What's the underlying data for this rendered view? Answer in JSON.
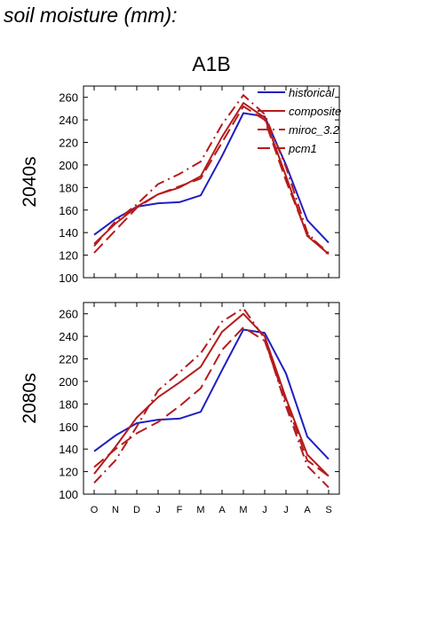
{
  "page": {
    "title": "soil moisture (mm):"
  },
  "colors": {
    "historical": "#1f1fbf",
    "models": "#b51c1c",
    "axis": "#000000"
  },
  "chart_data": {
    "type": "line",
    "title": "A1B",
    "x_categories": [
      "O",
      "N",
      "D",
      "J",
      "F",
      "M",
      "A",
      "M",
      "J",
      "J",
      "A",
      "S"
    ],
    "ylim": [
      100,
      270
    ],
    "yticks": [
      100,
      120,
      140,
      160,
      180,
      200,
      220,
      240,
      260
    ],
    "legend": {
      "placement": "top-right",
      "entries": [
        {
          "label": "historical",
          "style": "solid",
          "color_key": "historical"
        },
        {
          "label": "composite",
          "style": "solid",
          "color_key": "models"
        },
        {
          "label": "miroc_3.2",
          "style": "dashdot",
          "color_key": "models"
        },
        {
          "label": "pcm1",
          "style": "dashed",
          "color_key": "models"
        }
      ]
    },
    "panels": [
      {
        "label": "2040s",
        "series": [
          {
            "name": "historical",
            "style": "solid",
            "color_key": "historical",
            "values": [
              138,
              152,
              163,
              166,
              167,
              173,
              208,
              246,
              243,
              200,
              151,
              131
            ]
          },
          {
            "name": "composite",
            "style": "solid",
            "color_key": "models",
            "values": [
              130,
              148,
              163,
              174,
              180,
              190,
              225,
              255,
              242,
              190,
              137,
              121
            ]
          },
          {
            "name": "miroc_3.2",
            "style": "dashdot",
            "color_key": "models",
            "values": [
              128,
              150,
              165,
              183,
              192,
              203,
              236,
              262,
              245,
              198,
              140,
              120
            ]
          },
          {
            "name": "pcm1",
            "style": "dashed",
            "color_key": "models",
            "values": [
              122,
              142,
              162,
              174,
              181,
              188,
              220,
              252,
              240,
              186,
              138,
              122
            ]
          }
        ]
      },
      {
        "label": "2080s",
        "series": [
          {
            "name": "historical",
            "style": "solid",
            "color_key": "historical",
            "values": [
              138,
              152,
              163,
              166,
              167,
              173,
              210,
              246,
              243,
              207,
              151,
              131
            ]
          },
          {
            "name": "composite",
            "style": "solid",
            "color_key": "models",
            "values": [
              118,
              142,
              168,
              186,
              199,
              213,
              244,
              260,
              240,
              185,
              135,
              116
            ]
          },
          {
            "name": "miroc_3.2",
            "style": "dashdot",
            "color_key": "models",
            "values": [
              110,
              130,
              160,
              192,
              208,
              225,
              253,
              265,
              238,
              178,
              125,
              106
            ]
          },
          {
            "name": "pcm1",
            "style": "dashed",
            "color_key": "models",
            "values": [
              124,
              140,
              154,
              164,
              178,
              194,
              228,
              248,
              236,
              182,
              130,
              116
            ]
          }
        ]
      }
    ]
  }
}
